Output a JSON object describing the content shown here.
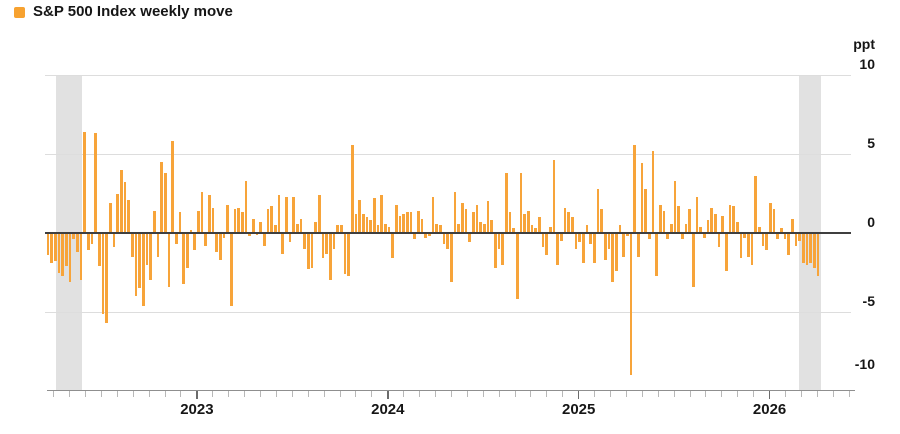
{
  "legend": {
    "label": "S&P 500 Index weekly move"
  },
  "y_axis": {
    "unit_label": "ppt",
    "tick_labels": [
      "10",
      "5",
      "0",
      "-5",
      "-10"
    ],
    "tick_values": [
      10,
      5,
      0,
      -5,
      -10
    ]
  },
  "x_axis": {
    "year_labels": [
      "2023",
      "2024",
      "2025",
      "2026"
    ]
  },
  "colors": {
    "bar": "#F7A43A",
    "legend_swatch": "#F7A230",
    "grid": "#DDDDDD",
    "zero_line": "#3F3F3F",
    "axis_line": "#8F8F8F",
    "minor_tick": "#B8B8B8",
    "year_tick": "#6B6B6B",
    "shaded_band": "#E1E1E1",
    "text": "#161616"
  },
  "chart_data": {
    "type": "bar",
    "title": "S&P 500 Index weekly move",
    "ylabel": "ppt",
    "ylim": [
      -10,
      10
    ],
    "gridlines": [
      10,
      5,
      0,
      -5,
      -10
    ],
    "frequency": "weekly",
    "legend_position": "top-left",
    "x_year_tick_labels": [
      "2023",
      "2024",
      "2025",
      "2026"
    ],
    "year_tick_indices": [
      40.6,
      92.7,
      144.7,
      196.8
    ],
    "shaded_band_index_ranges": [
      [
        2.45,
        9.55
      ],
      [
        205.1,
        211.2
      ]
    ],
    "values": [
      -1.4,
      -1.9,
      -1.8,
      -2.5,
      -2.7,
      -2.1,
      -3.1,
      -0.4,
      -1.2,
      -3.0,
      6.4,
      -1.1,
      -0.7,
      6.3,
      -2.1,
      -5.1,
      -5.7,
      1.9,
      -0.9,
      2.5,
      4.0,
      3.2,
      2.1,
      -1.5,
      -4.0,
      -3.5,
      -4.6,
      -2.0,
      -3.0,
      1.4,
      -1.5,
      4.5,
      3.8,
      -3.4,
      5.8,
      -0.7,
      1.3,
      -3.2,
      -2.2,
      0.2,
      -1.1,
      1.4,
      2.6,
      -0.8,
      2.4,
      1.6,
      -1.2,
      -1.7,
      -0.3,
      1.8,
      -4.6,
      1.5,
      1.6,
      1.3,
      3.3,
      -0.2,
      0.9,
      -0.1,
      0.7,
      -0.8,
      1.5,
      1.7,
      0.5,
      2.4,
      -1.3,
      2.3,
      -0.6,
      2.3,
      0.6,
      0.9,
      -1.0,
      -2.3,
      -2.2,
      0.7,
      2.4,
      -1.6,
      -1.3,
      -3.0,
      -1.0,
      0.5,
      0.5,
      -2.6,
      -2.7,
      5.6,
      1.2,
      2.1,
      1.2,
      1.0,
      0.8,
      2.2,
      0.5,
      2.4,
      0.6,
      0.4,
      -1.6,
      1.8,
      1.1,
      1.2,
      1.3,
      1.3,
      -0.4,
      1.4,
      0.9,
      -0.3,
      -0.2,
      2.3,
      0.6,
      0.5,
      -0.7,
      -1.0,
      -3.1,
      2.6,
      0.6,
      1.9,
      1.5,
      -0.6,
      1.3,
      1.8,
      0.7,
      0.6,
      2.0,
      0.8,
      -2.2,
      -1.0,
      -2.0,
      3.8,
      1.3,
      0.3,
      -4.2,
      3.8,
      1.2,
      1.4,
      0.5,
      0.3,
      1.0,
      -0.9,
      -1.4,
      0.4,
      4.6,
      -2.0,
      -0.5,
      1.6,
      1.3,
      1.0,
      -1.0,
      -0.6,
      -1.9,
      0.5,
      -0.7,
      -1.9,
      2.8,
      1.5,
      -1.7,
      -1.0,
      -3.1,
      -2.4,
      0.5,
      -1.5,
      -0.2,
      -9.0,
      5.6,
      -1.5,
      4.4,
      2.8,
      -0.4,
      5.2,
      -2.7,
      1.8,
      1.4,
      -0.4,
      0.6,
      3.3,
      1.7,
      -0.4,
      0.6,
      1.5,
      -3.4,
      2.3,
      0.4,
      -0.3,
      0.8,
      1.6,
      1.2,
      -0.9,
      1.1,
      -2.4,
      1.8,
      1.7,
      0.7,
      -1.6,
      -0.3,
      -1.5,
      -2.0,
      3.6,
      0.4,
      -0.8,
      -1.1,
      1.9,
      1.5,
      -0.4,
      0.3,
      -0.4,
      -1.4,
      0.9,
      -0.8,
      -0.5,
      -1.9,
      -2.0,
      -1.9,
      -2.2,
      -2.7
    ]
  }
}
